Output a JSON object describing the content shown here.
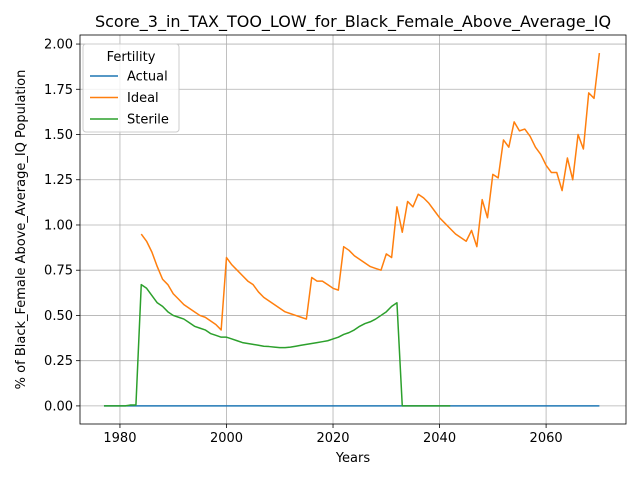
{
  "chart_data": {
    "type": "line",
    "title": "Score_3_in_TAX_TOO_LOW_for_Black_Female_Above_Average_IQ",
    "xlabel": "Years",
    "ylabel": "% of Black_Female Above_Average_IQ Population",
    "xlim": [
      1972.5,
      2075
    ],
    "ylim": [
      -0.1,
      2.05
    ],
    "xticks": [
      1980,
      2000,
      2020,
      2040,
      2060
    ],
    "yticks": [
      0.0,
      0.25,
      0.5,
      0.75,
      1.0,
      1.25,
      1.5,
      1.75,
      2.0
    ],
    "xtick_labels": [
      "1980",
      "2000",
      "2020",
      "2040",
      "2060"
    ],
    "ytick_labels": [
      "0.00",
      "0.25",
      "0.50",
      "0.75",
      "1.00",
      "1.25",
      "1.50",
      "1.75",
      "2.00"
    ],
    "grid": true,
    "legend": {
      "title": "Fertility",
      "placement": "top-left"
    },
    "series": [
      {
        "name": "Actual",
        "color": "#1f77b4",
        "x": [
          1977,
          2070
        ],
        "y": [
          0.0,
          0.0
        ]
      },
      {
        "name": "Ideal",
        "color": "#ff7f0e",
        "x": [
          1984,
          1985,
          1986,
          1987,
          1988,
          1989,
          1990,
          1991,
          1992,
          1993,
          1994,
          1995,
          1996,
          1997,
          1998,
          1999,
          2000,
          2001,
          2002,
          2003,
          2004,
          2005,
          2006,
          2007,
          2008,
          2009,
          2010,
          2011,
          2012,
          2013,
          2014,
          2015,
          2016,
          2017,
          2018,
          2019,
          2020,
          2021,
          2022,
          2023,
          2024,
          2025,
          2026,
          2027,
          2028,
          2029,
          2030,
          2031,
          2032,
          2033,
          2034,
          2035,
          2036,
          2037,
          2038,
          2039,
          2040,
          2041,
          2042,
          2043,
          2044,
          2045,
          2046,
          2047,
          2048,
          2049,
          2050,
          2051,
          2052,
          2053,
          2054,
          2055,
          2056,
          2057,
          2058,
          2059,
          2060,
          2061,
          2062,
          2063,
          2064,
          2065,
          2066,
          2067,
          2068,
          2069,
          2070
        ],
        "y": [
          0.95,
          0.91,
          0.85,
          0.77,
          0.7,
          0.67,
          0.62,
          0.59,
          0.56,
          0.54,
          0.52,
          0.5,
          0.49,
          0.47,
          0.45,
          0.42,
          0.82,
          0.78,
          0.75,
          0.72,
          0.69,
          0.67,
          0.63,
          0.6,
          0.58,
          0.56,
          0.54,
          0.52,
          0.51,
          0.5,
          0.49,
          0.48,
          0.71,
          0.69,
          0.69,
          0.67,
          0.65,
          0.64,
          0.88,
          0.86,
          0.83,
          0.81,
          0.79,
          0.77,
          0.76,
          0.75,
          0.84,
          0.82,
          1.1,
          0.96,
          1.13,
          1.1,
          1.17,
          1.15,
          1.12,
          1.08,
          1.04,
          1.01,
          0.98,
          0.95,
          0.93,
          0.91,
          0.97,
          0.88,
          1.14,
          1.04,
          1.28,
          1.26,
          1.47,
          1.43,
          1.57,
          1.52,
          1.53,
          1.49,
          1.43,
          1.39,
          1.33,
          1.29,
          1.29,
          1.19,
          1.37,
          1.25,
          1.5,
          1.42,
          1.73,
          1.7,
          1.95
        ]
      },
      {
        "name": "Sterile",
        "color": "#2ca02c",
        "x": [
          1977,
          1978,
          1979,
          1980,
          1981,
          1982,
          1983,
          1984,
          1985,
          1986,
          1987,
          1988,
          1989,
          1990,
          1991,
          1992,
          1993,
          1994,
          1995,
          1996,
          1997,
          1998,
          1999,
          2000,
          2001,
          2002,
          2003,
          2004,
          2005,
          2006,
          2007,
          2008,
          2009,
          2010,
          2011,
          2012,
          2013,
          2014,
          2015,
          2016,
          2017,
          2018,
          2019,
          2020,
          2021,
          2022,
          2023,
          2024,
          2025,
          2026,
          2027,
          2028,
          2029,
          2030,
          2031,
          2032,
          2033,
          2034,
          2035,
          2036,
          2037,
          2038,
          2039,
          2040,
          2041,
          2042
        ],
        "y": [
          0.0,
          0.0,
          0.0,
          0.0,
          0.0,
          0.005,
          0.005,
          0.67,
          0.65,
          0.61,
          0.57,
          0.55,
          0.52,
          0.5,
          0.49,
          0.48,
          0.46,
          0.44,
          0.43,
          0.42,
          0.4,
          0.39,
          0.38,
          0.38,
          0.37,
          0.36,
          0.35,
          0.345,
          0.34,
          0.335,
          0.33,
          0.328,
          0.325,
          0.322,
          0.322,
          0.325,
          0.33,
          0.335,
          0.34,
          0.345,
          0.35,
          0.355,
          0.36,
          0.37,
          0.38,
          0.395,
          0.405,
          0.42,
          0.44,
          0.455,
          0.465,
          0.48,
          0.5,
          0.52,
          0.55,
          0.57,
          0.0,
          0.0,
          0.0,
          0.0,
          0.0,
          0.0,
          0.0,
          0.0,
          0.0,
          0.0
        ]
      }
    ]
  }
}
